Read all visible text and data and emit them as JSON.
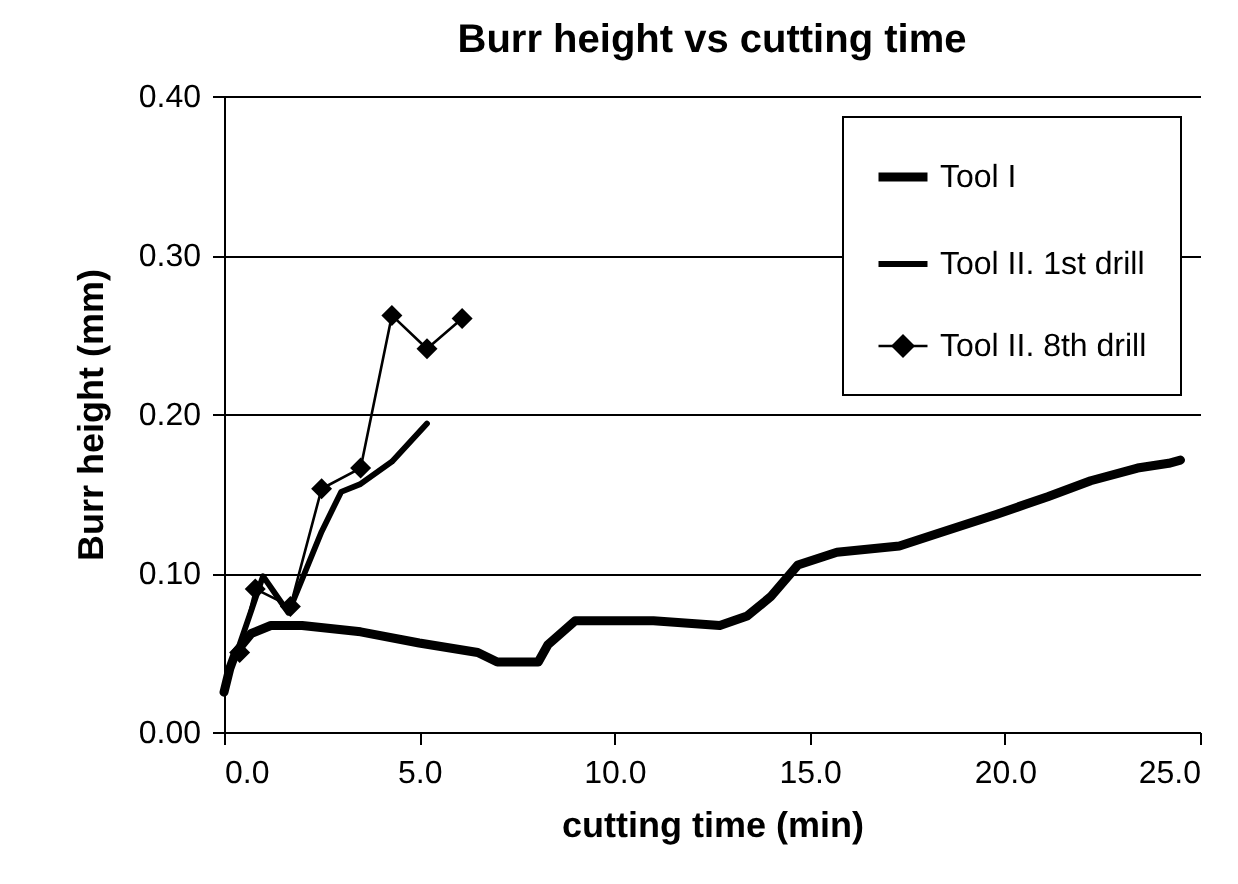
{
  "chart_data": {
    "type": "line",
    "title": "Burr height vs cutting time",
    "xlabel": "cutting time (min)",
    "ylabel": "Burr height (mm)",
    "xlim": [
      0,
      25
    ],
    "xticks": [
      {
        "value": 0,
        "label": "0.0"
      },
      {
        "value": 5,
        "label": "5.0"
      },
      {
        "value": 10,
        "label": "10.0"
      },
      {
        "value": 15,
        "label": "15.0"
      },
      {
        "value": 20,
        "label": "20.0"
      },
      {
        "value": 25,
        "label": "25.0"
      }
    ],
    "ylim": [
      0,
      0.4
    ],
    "yticks": [
      {
        "value": 0,
        "label": "0.00"
      },
      {
        "value": 0.1,
        "label": "0.10"
      },
      {
        "value": 0.2,
        "label": "0.20"
      },
      {
        "value": 0.3,
        "label": "0.30"
      },
      {
        "value": 0.4,
        "label": "0.40"
      }
    ],
    "grid": "y",
    "legend": "top right",
    "series": [
      {
        "name": "Tool I",
        "color": "#000000",
        "marker": "none",
        "x": [
          0,
          0.15,
          0.3,
          0.7,
          1.2,
          2,
          3.5,
          5,
          6.5,
          7,
          8.05,
          8.3,
          9,
          10,
          11,
          12.7,
          13.4,
          14,
          14.7,
          15.7,
          17.3,
          18.3,
          19.8,
          21.1,
          22.2,
          23.4,
          24.2,
          24.5
        ],
        "values": [
          0.025,
          0.04,
          0.05,
          0.062,
          0.067,
          0.067,
          0.063,
          0.056,
          0.05,
          0.044,
          0.044,
          0.055,
          0.07,
          0.07,
          0.07,
          0.067,
          0.073,
          0.085,
          0.105,
          0.113,
          0.117,
          0.125,
          0.137,
          0.148,
          0.158,
          0.166,
          0.169,
          0.171
        ]
      },
      {
        "name": "Tool II. 1st drill",
        "color": "#000000",
        "marker": "none",
        "x": [
          0.4,
          1.0,
          1.65,
          2.5,
          3.0,
          3.5,
          4.3,
          5.2
        ],
        "values": [
          0.055,
          0.098,
          0.075,
          0.126,
          0.151,
          0.156,
          0.17,
          0.194
        ]
      },
      {
        "name": "Tool II. 8th drill",
        "color": "#000000",
        "marker": "diamond",
        "x": [
          0.4,
          0.8,
          1.7,
          2.5,
          3.5,
          4.3,
          5.2,
          6.1
        ],
        "values": [
          0.05,
          0.09,
          0.079,
          0.153,
          0.166,
          0.262,
          0.241,
          0.26
        ]
      }
    ]
  }
}
